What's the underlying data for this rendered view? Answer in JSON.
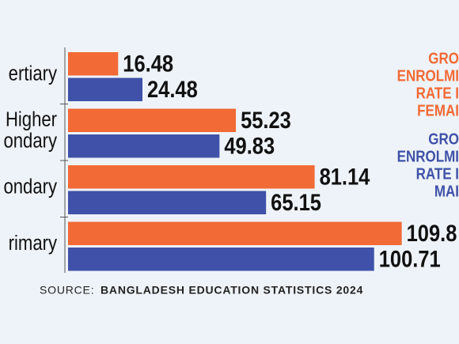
{
  "chart_data": {
    "type": "hbar",
    "categories": [
      "ertiary",
      "Higher\nondary",
      "ondary",
      "rimary"
    ],
    "series": [
      {
        "name": "GRO\nENROLMI\nRATE I\nFEMAI",
        "color": "#f26a35",
        "values": [
          16.48,
          55.23,
          81.14,
          109.8
        ]
      },
      {
        "name": "GRO\nENROLMI\nRATE I\nMAI",
        "color": "#3f51a8",
        "values": [
          24.48,
          49.83,
          65.15,
          100.71
        ]
      }
    ],
    "source_label": "SOURCE:",
    "source": "BANGLADESH EDUCATION STATISTICS 2024"
  }
}
